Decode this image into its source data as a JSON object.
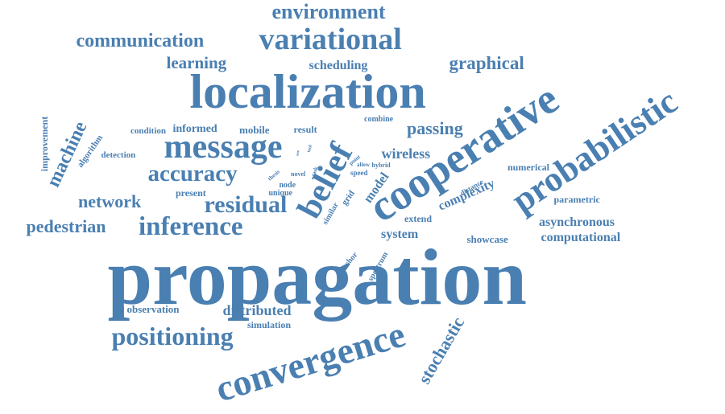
{
  "palette": {
    "word_color": "#4a7fb1",
    "background": "#ffffff"
  },
  "words": [
    {
      "name": "propagation",
      "text": "propagation"
    },
    {
      "name": "localization",
      "text": "localization"
    },
    {
      "name": "cooperative",
      "text": "cooperative"
    },
    {
      "name": "probabilistic",
      "text": "probabilistic"
    },
    {
      "name": "convergence",
      "text": "convergence"
    },
    {
      "name": "message",
      "text": "message"
    },
    {
      "name": "belief",
      "text": "belief"
    },
    {
      "name": "variational",
      "text": "variational"
    },
    {
      "name": "inference",
      "text": "inference"
    },
    {
      "name": "residual",
      "text": "residual"
    },
    {
      "name": "accuracy",
      "text": "accuracy"
    },
    {
      "name": "positioning",
      "text": "positioning"
    },
    {
      "name": "environment",
      "text": "environment"
    },
    {
      "name": "communication",
      "text": "communication"
    },
    {
      "name": "graphical",
      "text": "graphical"
    },
    {
      "name": "learning",
      "text": "learning"
    },
    {
      "name": "scheduling",
      "text": "scheduling"
    },
    {
      "name": "passing",
      "text": "passing"
    },
    {
      "name": "wireless",
      "text": "wireless"
    },
    {
      "name": "network",
      "text": "network"
    },
    {
      "name": "pedestrian",
      "text": "pedestrian"
    },
    {
      "name": "machine",
      "text": "machine"
    },
    {
      "name": "stochastic",
      "text": "stochastic"
    },
    {
      "name": "distributed",
      "text": "distributed"
    },
    {
      "name": "simulation",
      "text": "simulation"
    },
    {
      "name": "observation",
      "text": "observation"
    },
    {
      "name": "system",
      "text": "system"
    },
    {
      "name": "showcase",
      "text": "showcase"
    },
    {
      "name": "computational",
      "text": "computational"
    },
    {
      "name": "asynchronous",
      "text": "asynchronous"
    },
    {
      "name": "parametric",
      "text": "parametric"
    },
    {
      "name": "complexity",
      "text": "complexity"
    },
    {
      "name": "numerical",
      "text": "numerical"
    },
    {
      "name": "model",
      "text": "model"
    },
    {
      "name": "extend",
      "text": "extend"
    },
    {
      "name": "present",
      "text": "present"
    },
    {
      "name": "informed",
      "text": "informed"
    },
    {
      "name": "mobile",
      "text": "mobile"
    },
    {
      "name": "condition",
      "text": "condition"
    },
    {
      "name": "result",
      "text": "result"
    },
    {
      "name": "combine",
      "text": "combine"
    },
    {
      "name": "detection",
      "text": "detection"
    },
    {
      "name": "algorithm",
      "text": "algorithm"
    },
    {
      "name": "improvement",
      "text": "improvement"
    },
    {
      "name": "grid",
      "text": "grid"
    },
    {
      "name": "similar",
      "text": "similar"
    },
    {
      "name": "anchor",
      "text": "anchor"
    },
    {
      "name": "spectrum",
      "text": "spectrum"
    },
    {
      "name": "distance",
      "text": "distance"
    },
    {
      "name": "node",
      "text": "node"
    },
    {
      "name": "unique",
      "text": "unique"
    },
    {
      "name": "novel",
      "text": "novel"
    },
    {
      "name": "speed",
      "text": "speed"
    },
    {
      "name": "hybrid",
      "text": "hybrid"
    },
    {
      "name": "point",
      "text": "point"
    },
    {
      "name": "allow",
      "text": "allow"
    },
    {
      "name": "thesis",
      "text": "thesis"
    },
    {
      "name": "task",
      "text": "task"
    },
    {
      "name": "tool",
      "text": "tool"
    },
    {
      "name": "use",
      "text": "use"
    }
  ]
}
